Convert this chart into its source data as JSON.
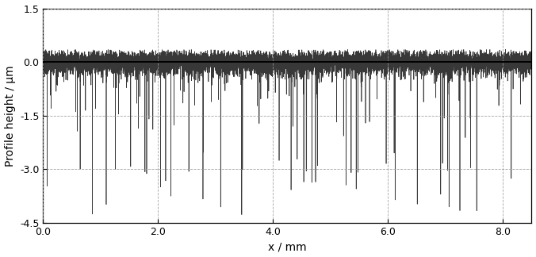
{
  "xlabel": "x / mm",
  "ylabel": "Profile height / μm",
  "xlim": [
    0.0,
    8.5
  ],
  "ylim": [
    -4.5,
    1.5
  ],
  "xticks": [
    0.0,
    2.0,
    4.0,
    6.0,
    8.0
  ],
  "yticks": [
    1.5,
    0.0,
    -1.5,
    -3.0,
    -4.5
  ],
  "grid_color": "#999999",
  "line_color": "#222222",
  "zero_line_color": "#000000",
  "n_points": 9000,
  "x_max": 8.5,
  "base_sigma": 0.18,
  "spike_prob": 0.018,
  "spike_scale": 0.7,
  "seed": 7,
  "figsize": [
    6.76,
    3.24
  ],
  "dpi": 100,
  "background_color": "#ffffff",
  "spine_color": "#000000",
  "tick_labelsize": 9,
  "axis_labelsize": 10,
  "linewidth": 0.5
}
